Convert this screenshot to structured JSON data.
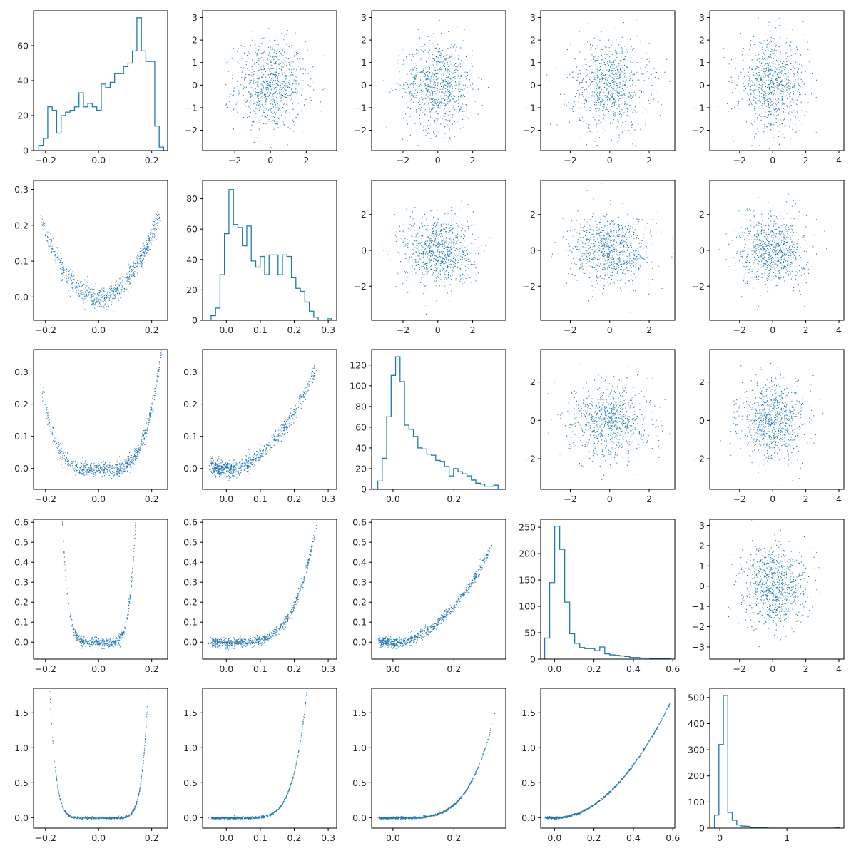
{
  "figure": {
    "rows": 5,
    "cols": 5,
    "series_color": "#1f77b4"
  },
  "chart_data": [
    {
      "row": 0,
      "col": 0,
      "type": "histogram",
      "xlim": [
        -0.245,
        0.26
      ],
      "ylim": [
        0,
        80
      ],
      "xticks": [
        "−0.2",
        "0.0",
        "0.2"
      ],
      "yticks": [
        "0",
        "20",
        "40",
        "60"
      ],
      "bin_edges_range": [
        -0.225,
        0.245
      ],
      "counts": [
        3,
        7,
        25,
        23,
        10,
        20,
        22,
        23,
        25,
        33,
        25,
        27,
        25,
        23,
        38,
        36,
        39,
        44,
        44,
        48,
        50,
        57,
        76,
        57,
        51,
        51,
        14,
        2
      ]
    },
    {
      "row": 0,
      "col": 1,
      "type": "scatter",
      "distribution": "gaussian",
      "n": 900,
      "xlim": [
        -3.8,
        3.7
      ],
      "ylim": [
        -2.9,
        3.3
      ],
      "xticks": [
        "−2",
        "0",
        "2"
      ],
      "yticks": [
        "−2",
        "−1",
        "0",
        "1",
        "2",
        "3"
      ]
    },
    {
      "row": 0,
      "col": 2,
      "type": "scatter",
      "distribution": "gaussian",
      "n": 900,
      "xlim": [
        -3.8,
        3.9
      ],
      "ylim": [
        -2.9,
        3.3
      ],
      "xticks": [
        "−2",
        "0",
        "2"
      ],
      "yticks": [
        "−2",
        "−1",
        "0",
        "1",
        "2",
        "3"
      ]
    },
    {
      "row": 0,
      "col": 3,
      "type": "scatter",
      "distribution": "gaussian",
      "n": 900,
      "xlim": [
        -3.5,
        3.3
      ],
      "ylim": [
        -2.9,
        3.3
      ],
      "xticks": [
        "−2",
        "0",
        "2"
      ],
      "yticks": [
        "−2",
        "−1",
        "0",
        "1",
        "2",
        "3"
      ]
    },
    {
      "row": 0,
      "col": 4,
      "type": "scatter",
      "distribution": "gaussian",
      "n": 900,
      "xlim": [
        -3.8,
        4.3
      ],
      "ylim": [
        -2.9,
        3.3
      ],
      "xticks": [
        "−2",
        "0",
        "2",
        "4"
      ],
      "yticks": [
        "−2",
        "−1",
        "0",
        "1",
        "2",
        "3"
      ]
    },
    {
      "row": 1,
      "col": 0,
      "type": "scatter",
      "distribution": "curve",
      "n": 800,
      "xlim": [
        -0.245,
        0.26
      ],
      "ylim": [
        -0.065,
        0.325
      ],
      "curve": "parabola",
      "center": 0.0,
      "coef": 4.4,
      "noise": 0.015,
      "domain": [
        -0.22,
        0.23
      ],
      "xticks": [
        "−0.2",
        "0.0",
        "0.2"
      ],
      "yticks": [
        "0.0",
        "0.1",
        "0.2",
        "0.3"
      ]
    },
    {
      "row": 1,
      "col": 1,
      "type": "histogram",
      "xlim": [
        -0.07,
        0.325
      ],
      "ylim": [
        0,
        92
      ],
      "xticks": [
        "0.0",
        "0.1",
        "0.2",
        "0.3"
      ],
      "yticks": [
        "0",
        "20",
        "40",
        "60",
        "80"
      ],
      "bin_edges_range": [
        -0.045,
        0.31
      ],
      "counts": [
        3,
        8,
        30,
        57,
        86,
        63,
        61,
        49,
        62,
        39,
        35,
        42,
        30,
        43,
        43,
        30,
        43,
        42,
        28,
        21,
        19,
        12,
        6,
        2,
        0,
        0,
        1
      ]
    },
    {
      "row": 1,
      "col": 2,
      "type": "scatter",
      "distribution": "gaussian",
      "n": 900,
      "xlim": [
        -3.8,
        3.9
      ],
      "ylim": [
        -3.9,
        3.9
      ],
      "xticks": [
        "−2",
        "0",
        "2"
      ],
      "yticks": [
        "−2",
        "0",
        "2"
      ]
    },
    {
      "row": 1,
      "col": 3,
      "type": "scatter",
      "distribution": "gaussian",
      "n": 900,
      "xlim": [
        -3.5,
        3.3
      ],
      "ylim": [
        -3.9,
        3.9
      ],
      "xticks": [
        "−2",
        "0",
        "2"
      ],
      "yticks": [
        "−2",
        "0",
        "2"
      ]
    },
    {
      "row": 1,
      "col": 4,
      "type": "scatter",
      "distribution": "gaussian",
      "n": 900,
      "xlim": [
        -3.8,
        4.3
      ],
      "ylim": [
        -3.9,
        3.9
      ],
      "xticks": [
        "−2",
        "0",
        "2",
        "4"
      ],
      "yticks": [
        "−2",
        "0",
        "2"
      ]
    },
    {
      "row": 2,
      "col": 0,
      "type": "scatter",
      "distribution": "curve",
      "n": 800,
      "xlim": [
        -0.245,
        0.26
      ],
      "ylim": [
        -0.065,
        0.37
      ],
      "curve": "quartic",
      "center": 0.0,
      "coef": 100,
      "noise": 0.012,
      "domain": [
        -0.22,
        0.23
      ],
      "xticks": [
        "−0.2",
        "0.0",
        "0.2"
      ],
      "yticks": [
        "0.0",
        "0.1",
        "0.2",
        "0.3"
      ]
    },
    {
      "row": 2,
      "col": 1,
      "type": "scatter",
      "distribution": "curve",
      "n": 800,
      "xlim": [
        -0.07,
        0.325
      ],
      "ylim": [
        -0.065,
        0.37
      ],
      "curve": "parabola",
      "center": 0.0,
      "coef": 4.5,
      "noise": 0.013,
      "domain": [
        -0.04,
        0.26
      ],
      "xticks": [
        "0.0",
        "0.1",
        "0.2",
        "0.3"
      ],
      "yticks": [
        "0.0",
        "0.1",
        "0.2",
        "0.3"
      ]
    },
    {
      "row": 2,
      "col": 2,
      "type": "histogram",
      "xlim": [
        -0.07,
        0.37
      ],
      "ylim": [
        0,
        135
      ],
      "xticks": [
        "0.0",
        "0.2"
      ],
      "yticks": [
        "0",
        "20",
        "40",
        "60",
        "80",
        "100",
        "120"
      ],
      "bin_edges_range": [
        -0.05,
        0.345
      ],
      "counts": [
        8,
        30,
        70,
        110,
        128,
        104,
        62,
        58,
        51,
        40,
        39,
        34,
        33,
        28,
        27,
        22,
        13,
        20,
        17,
        15,
        13,
        9,
        6,
        5,
        3,
        3,
        4
      ]
    },
    {
      "row": 2,
      "col": 3,
      "type": "scatter",
      "distribution": "gaussian",
      "n": 900,
      "xlim": [
        -3.5,
        3.3
      ],
      "ylim": [
        -3.6,
        3.7
      ],
      "xticks": [
        "−2",
        "0",
        "2"
      ],
      "yticks": [
        "−2",
        "0",
        "2"
      ]
    },
    {
      "row": 2,
      "col": 4,
      "type": "scatter",
      "distribution": "gaussian",
      "n": 900,
      "xlim": [
        -3.8,
        4.3
      ],
      "ylim": [
        -3.6,
        3.7
      ],
      "xticks": [
        "−2",
        "0",
        "2",
        "4"
      ],
      "yticks": [
        "−2",
        "0",
        "2"
      ]
    },
    {
      "row": 3,
      "col": 0,
      "type": "scatter",
      "distribution": "curve",
      "n": 800,
      "xlim": [
        -0.245,
        0.26
      ],
      "ylim": [
        -0.085,
        0.615
      ],
      "curve": "sixth",
      "center": 0.0,
      "coef": 3500,
      "noise": 0.012,
      "domain": [
        -0.22,
        0.23
      ],
      "xticks": [
        "−0.2",
        "0.0",
        "0.2"
      ],
      "yticks": [
        "0.0",
        "0.1",
        "0.2",
        "0.3",
        "0.4",
        "0.5",
        "0.6"
      ]
    },
    {
      "row": 3,
      "col": 1,
      "type": "scatter",
      "distribution": "curve",
      "n": 800,
      "xlim": [
        -0.07,
        0.325
      ],
      "ylim": [
        -0.085,
        0.615
      ],
      "curve": "quartic_shift",
      "center": 0.0,
      "coef": 110,
      "noise": 0.012,
      "domain": [
        -0.04,
        0.26
      ],
      "xticks": [
        "0.0",
        "0.1",
        "0.2",
        "0.3"
      ],
      "yticks": [
        "0.0",
        "0.1",
        "0.2",
        "0.3",
        "0.4",
        "0.5",
        "0.6"
      ]
    },
    {
      "row": 3,
      "col": 2,
      "type": "scatter",
      "distribution": "curve",
      "n": 800,
      "xlim": [
        -0.07,
        0.37
      ],
      "ylim": [
        -0.085,
        0.615
      ],
      "curve": "parabola",
      "center": 0.0,
      "coef": 4.6,
      "noise": 0.013,
      "domain": [
        -0.04,
        0.32
      ],
      "xticks": [
        "0.0",
        "0.2"
      ],
      "yticks": [
        "0.0",
        "0.1",
        "0.2",
        "0.3",
        "0.4",
        "0.5",
        "0.6"
      ]
    },
    {
      "row": 3,
      "col": 3,
      "type": "histogram",
      "xlim": [
        -0.07,
        0.61
      ],
      "ylim": [
        0,
        265
      ],
      "xticks": [
        "0.0",
        "0.2",
        "0.4",
        "0.6"
      ],
      "yticks": [
        "0",
        "50",
        "100",
        "150",
        "200",
        "250"
      ],
      "bin_edges_range": [
        -0.05,
        0.585
      ],
      "counts": [
        40,
        145,
        252,
        208,
        108,
        48,
        30,
        22,
        20,
        20,
        16,
        23,
        10,
        8,
        7,
        6,
        5,
        3,
        3,
        2,
        2,
        1,
        1,
        1,
        1
      ]
    },
    {
      "row": 3,
      "col": 4,
      "type": "scatter",
      "distribution": "gaussian",
      "n": 900,
      "xlim": [
        -3.8,
        4.3
      ],
      "ylim": [
        -3.6,
        3.3
      ],
      "xticks": [
        "−2",
        "0",
        "2",
        "4"
      ],
      "yticks": [
        "−3",
        "−2",
        "−1",
        "0",
        "1",
        "2",
        "3"
      ]
    },
    {
      "row": 4,
      "col": 0,
      "type": "scatter",
      "distribution": "curve",
      "n": 800,
      "xlim": [
        -0.245,
        0.26
      ],
      "ylim": [
        -0.15,
        1.85
      ],
      "curve": "steep",
      "center": 0.0,
      "coef": 3500,
      "noise": 0.008,
      "domain": [
        -0.22,
        0.23
      ],
      "xticks": [
        "−0.2",
        "0.0",
        "0.2"
      ],
      "yticks": [
        "0.0",
        "0.5",
        "1.0",
        "1.5"
      ]
    },
    {
      "row": 4,
      "col": 1,
      "type": "scatter",
      "distribution": "curve",
      "n": 800,
      "xlim": [
        -0.07,
        0.325
      ],
      "ylim": [
        -0.15,
        1.85
      ],
      "curve": "steep_shift",
      "center": 0.0,
      "coef": 3500,
      "noise": 0.008,
      "domain": [
        -0.04,
        0.26
      ],
      "xticks": [
        "0.0",
        "0.1",
        "0.2",
        "0.3"
      ],
      "yticks": [
        "0.0",
        "0.5",
        "1.0",
        "1.5"
      ]
    },
    {
      "row": 4,
      "col": 2,
      "type": "scatter",
      "distribution": "curve",
      "n": 800,
      "xlim": [
        -0.07,
        0.37
      ],
      "ylim": [
        -0.15,
        1.85
      ],
      "curve": "quartic_shift",
      "center": 0.0,
      "coef": 110,
      "noise": 0.008,
      "domain": [
        -0.04,
        0.32
      ],
      "xticks": [
        "0.0",
        "0.2"
      ],
      "yticks": [
        "0.0",
        "0.5",
        "1.0",
        "1.5"
      ]
    },
    {
      "row": 4,
      "col": 3,
      "type": "scatter",
      "distribution": "curve",
      "n": 800,
      "xlim": [
        -0.07,
        0.61
      ],
      "ylim": [
        -0.15,
        1.85
      ],
      "curve": "parabola",
      "center": 0.0,
      "coef": 4.8,
      "noise": 0.008,
      "domain": [
        -0.04,
        0.58
      ],
      "xticks": [
        "0.0",
        "0.2",
        "0.4",
        "0.6"
      ],
      "yticks": [
        "0.0",
        "0.5",
        "1.0",
        "1.5"
      ]
    },
    {
      "row": 4,
      "col": 4,
      "type": "histogram",
      "xlim": [
        -0.15,
        1.85
      ],
      "ylim": [
        0,
        535
      ],
      "xticks": [
        "0",
        "1"
      ],
      "yticks": [
        "0",
        "100",
        "200",
        "300",
        "400",
        "500"
      ],
      "bin_edges_range": [
        -0.08,
        1.78
      ],
      "counts": [
        50,
        320,
        508,
        60,
        30,
        12,
        8,
        7,
        3,
        2,
        1,
        1,
        0,
        0,
        0,
        0,
        0,
        0,
        0,
        0,
        0,
        0,
        0,
        0,
        0,
        0,
        0,
        1
      ]
    }
  ]
}
